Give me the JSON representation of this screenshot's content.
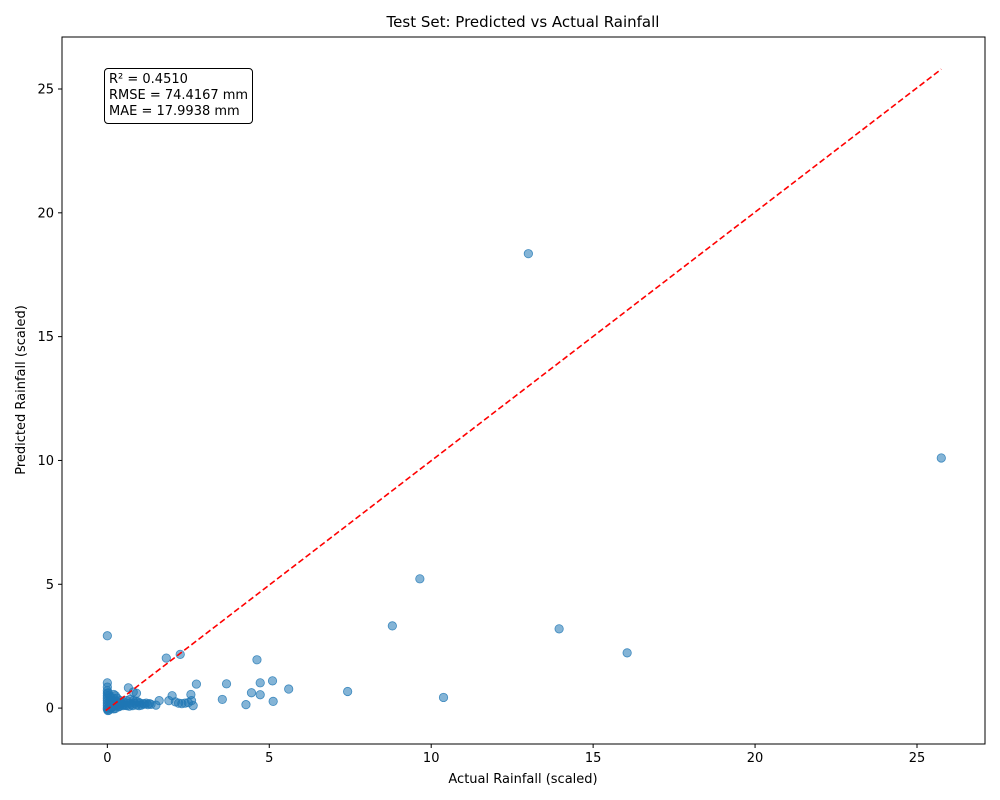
{
  "chart_data": {
    "type": "scatter",
    "title": "Test Set: Predicted vs Actual Rainfall",
    "xlabel": "Actual Rainfall (scaled)",
    "ylabel": "Predicted Rainfall (scaled)",
    "xlim": [
      -1.4,
      27.1
    ],
    "ylim": [
      -1.45,
      27.1
    ],
    "xticks": [
      0,
      5,
      10,
      15,
      20,
      25
    ],
    "yticks": [
      0,
      5,
      10,
      15,
      20,
      25
    ],
    "grid": false,
    "point_color": "#1f77b4",
    "reference_line": {
      "style": "dashed",
      "color": "#ff0000",
      "from": [
        -0.05,
        -0.1
      ],
      "to": [
        25.75,
        25.8
      ]
    },
    "annotation": [
      "R² = 0.4510",
      "RMSE = 74.4167 mm",
      "MAE = 17.9938 mm"
    ],
    "points": [
      [
        13.0,
        18.35
      ],
      [
        25.75,
        10.1
      ],
      [
        9.65,
        5.22
      ],
      [
        8.8,
        3.32
      ],
      [
        13.95,
        3.2
      ],
      [
        16.05,
        2.23
      ],
      [
        0.0,
        2.92
      ],
      [
        1.82,
        2.02
      ],
      [
        2.25,
        2.17
      ],
      [
        4.62,
        1.95
      ],
      [
        5.6,
        0.77
      ],
      [
        5.1,
        1.1
      ],
      [
        4.72,
        1.02
      ],
      [
        3.68,
        0.98
      ],
      [
        2.75,
        0.97
      ],
      [
        7.42,
        0.67
      ],
      [
        4.45,
        0.62
      ],
      [
        4.72,
        0.54
      ],
      [
        10.38,
        0.43
      ],
      [
        5.12,
        0.27
      ],
      [
        3.55,
        0.35
      ],
      [
        4.28,
        0.14
      ],
      [
        2.58,
        0.55
      ],
      [
        2.65,
        0.1
      ],
      [
        2.6,
        0.3
      ],
      [
        2.0,
        0.5
      ],
      [
        2.1,
        0.25
      ],
      [
        2.2,
        0.2
      ],
      [
        2.3,
        0.18
      ],
      [
        2.4,
        0.2
      ],
      [
        2.5,
        0.22
      ],
      [
        1.9,
        0.3
      ],
      [
        1.6,
        0.3
      ],
      [
        1.5,
        0.12
      ],
      [
        1.3,
        0.18
      ],
      [
        1.2,
        0.2
      ],
      [
        1.1,
        0.18
      ],
      [
        1.0,
        0.2
      ],
      [
        0.9,
        0.12
      ],
      [
        0.8,
        0.3
      ],
      [
        0.7,
        0.2
      ],
      [
        0.65,
        0.82
      ],
      [
        0.9,
        0.6
      ],
      [
        0.8,
        0.65
      ],
      [
        0.6,
        0.1
      ],
      [
        0.5,
        0.15
      ],
      [
        0.4,
        0.3
      ],
      [
        0.3,
        0.4
      ],
      [
        0.2,
        0.55
      ],
      [
        0.25,
        0.5
      ],
      [
        0.15,
        0.3
      ],
      [
        0.1,
        0.45
      ],
      [
        0.05,
        0.2
      ],
      [
        0.0,
        1.02
      ],
      [
        0.0,
        0.85
      ],
      [
        0.0,
        0.7
      ],
      [
        0.0,
        0.6
      ],
      [
        0.0,
        0.5
      ],
      [
        0.0,
        0.4
      ],
      [
        0.0,
        0.3
      ],
      [
        0.0,
        0.2
      ],
      [
        0.0,
        0.1
      ],
      [
        0.0,
        0.0
      ],
      [
        0.0,
        -0.05
      ],
      [
        0.02,
        -0.1
      ],
      [
        0.05,
        -0.08
      ],
      [
        0.1,
        0.0
      ],
      [
        0.15,
        0.05
      ],
      [
        0.2,
        0.1
      ],
      [
        0.25,
        0.15
      ],
      [
        0.3,
        0.1
      ],
      [
        0.35,
        0.05
      ],
      [
        0.4,
        0.12
      ],
      [
        0.45,
        0.18
      ],
      [
        0.5,
        0.25
      ],
      [
        0.55,
        0.12
      ],
      [
        0.6,
        0.3
      ],
      [
        0.7,
        0.35
      ],
      [
        0.75,
        0.15
      ],
      [
        0.85,
        0.2
      ],
      [
        0.95,
        0.25
      ],
      [
        1.05,
        0.12
      ],
      [
        1.15,
        0.16
      ],
      [
        1.25,
        0.14
      ],
      [
        1.35,
        0.15
      ],
      [
        0.08,
        0.32
      ],
      [
        0.12,
        0.22
      ],
      [
        0.18,
        0.4
      ],
      [
        0.22,
        0.08
      ],
      [
        0.28,
        0.28
      ],
      [
        0.33,
        0.2
      ],
      [
        0.38,
        0.08
      ],
      [
        0.42,
        0.22
      ],
      [
        0.48,
        0.1
      ],
      [
        0.58,
        0.2
      ],
      [
        0.68,
        0.08
      ],
      [
        0.78,
        0.1
      ],
      [
        0.88,
        0.28
      ],
      [
        0.98,
        0.1
      ],
      [
        0.03,
        0.62
      ],
      [
        0.06,
        0.5
      ],
      [
        0.09,
        0.14
      ],
      [
        0.14,
        0.02
      ],
      [
        0.19,
        -0.03
      ],
      [
        0.24,
        -0.02
      ]
    ]
  }
}
